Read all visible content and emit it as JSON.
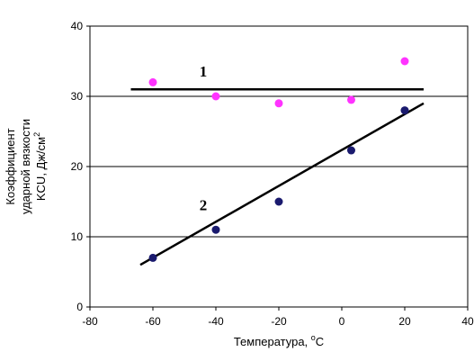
{
  "chart_data": {
    "type": "scatter",
    "xlabel": "Температура, ",
    "xlabel_unit": "C",
    "xlabel_sup": "o",
    "ylabel_line1": "Коэффициент",
    "ylabel_line2": "ударной вязкости",
    "ylabel_line3": "KCU, Дж/см",
    "ylabel_sup": "2",
    "xlim": [
      -80,
      40
    ],
    "ylim": [
      0,
      40
    ],
    "x_ticks": [
      "-80",
      "-60",
      "-40",
      "-20",
      "0",
      "20",
      "40"
    ],
    "y_ticks": [
      "0",
      "10",
      "20",
      "30",
      "40"
    ],
    "grid": "horizontal",
    "series": [
      {
        "color": "#ff33ff",
        "points": [
          {
            "x": -60,
            "y": 32
          },
          {
            "x": -40,
            "y": 30
          },
          {
            "x": -20,
            "y": 29
          },
          {
            "x": 3,
            "y": 29.5
          },
          {
            "x": 20,
            "y": 35
          }
        ]
      },
      {
        "color": "#1a1a6e",
        "points": [
          {
            "x": -60,
            "y": 7
          },
          {
            "x": -40,
            "y": 11
          },
          {
            "x": -20,
            "y": 15
          },
          {
            "x": 3,
            "y": 22.3
          },
          {
            "x": 20,
            "y": 28
          }
        ]
      }
    ],
    "lines": [
      {
        "label": "1",
        "x1": -67,
        "y1": 31,
        "x2": 26,
        "y2": 31
      },
      {
        "label": "2",
        "x1": -64,
        "y1": 6,
        "x2": 26,
        "y2": 29
      }
    ],
    "annotations": [
      {
        "text": "1",
        "x": -44,
        "y": 32.8
      },
      {
        "text": "2",
        "x": -44,
        "y": 13.8
      }
    ]
  }
}
